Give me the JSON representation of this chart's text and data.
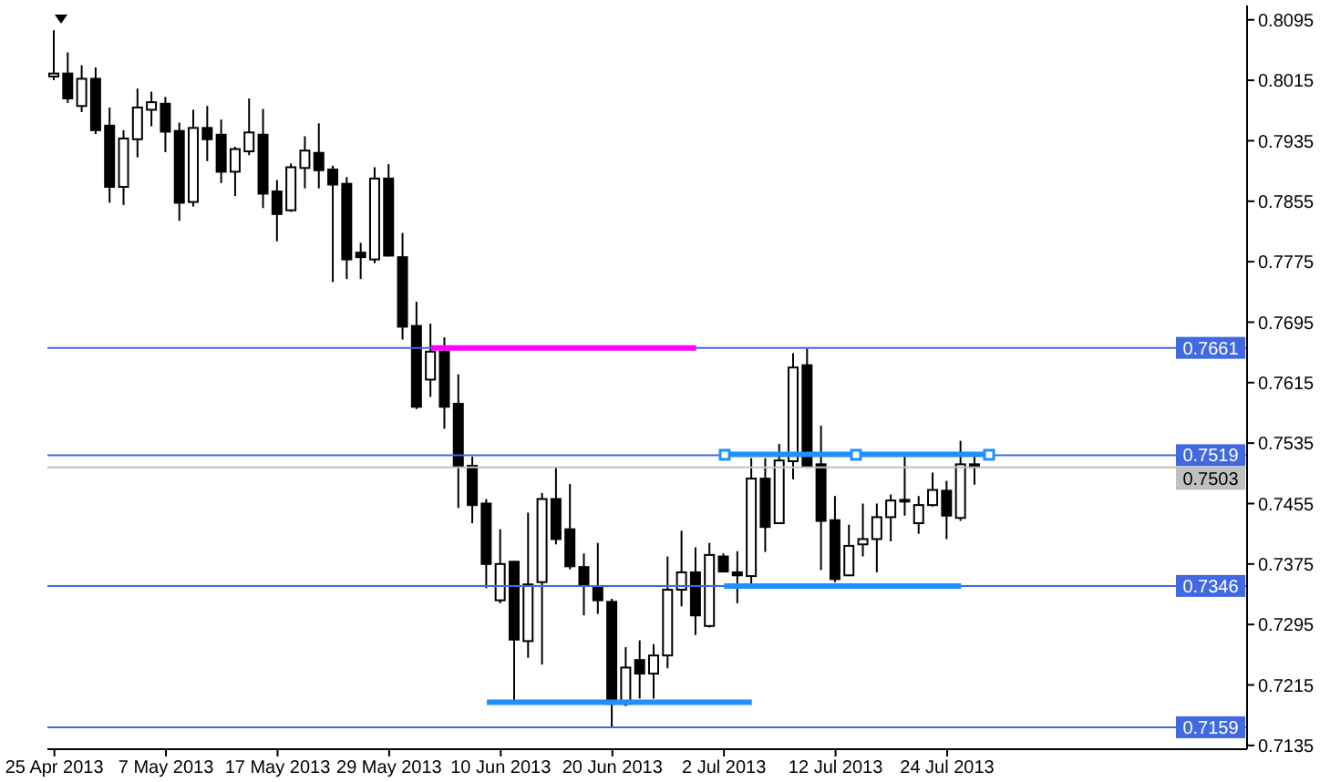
{
  "chart_data": {
    "type": "candlestick",
    "color": "#000000",
    "categories": [
      "25 Apr 2013",
      null,
      null,
      null,
      null,
      null,
      null,
      null,
      "7 May 2013",
      null,
      null,
      null,
      null,
      null,
      null,
      null,
      "17 May 2013",
      null,
      null,
      null,
      null,
      null,
      null,
      null,
      "29 May 2013",
      null,
      null,
      null,
      null,
      null,
      null,
      null,
      "10 Jun 2013",
      null,
      null,
      null,
      null,
      null,
      null,
      null,
      "20 Jun 2013",
      null,
      null,
      null,
      null,
      null,
      null,
      null,
      "2 Jul 2013",
      null,
      null,
      null,
      null,
      null,
      null,
      null,
      "12 Jul 2013",
      null,
      null,
      null,
      null,
      null,
      null,
      null,
      "24 Jul 2013",
      null,
      null,
      null,
      null,
      null,
      null,
      null,
      null,
      null,
      null,
      null,
      null,
      null,
      null,
      null,
      null,
      null,
      null,
      null,
      null,
      null
    ],
    "ohlc": [
      [
        0.802,
        0.8081,
        0.8015,
        0.8024
      ],
      [
        0.8024,
        0.8052,
        0.7985,
        0.7991
      ],
      [
        0.7981,
        0.8035,
        0.7973,
        0.8017
      ],
      [
        0.8017,
        0.8032,
        0.7944,
        0.7949
      ],
      [
        0.7955,
        0.7979,
        0.7853,
        0.7874
      ],
      [
        0.7874,
        0.7949,
        0.785,
        0.7938
      ],
      [
        0.7937,
        0.8004,
        0.7913,
        0.7979
      ],
      [
        0.7976,
        0.8,
        0.7954,
        0.7986
      ],
      [
        0.7984,
        0.7993,
        0.792,
        0.7947
      ],
      [
        0.7948,
        0.7959,
        0.7829,
        0.7853
      ],
      [
        0.7854,
        0.7976,
        0.7848,
        0.7952
      ],
      [
        0.7952,
        0.7981,
        0.7908,
        0.7937
      ],
      [
        0.7943,
        0.7963,
        0.7879,
        0.7894
      ],
      [
        0.7894,
        0.7927,
        0.7862,
        0.7924
      ],
      [
        0.7921,
        0.7991,
        0.7916,
        0.7946
      ],
      [
        0.7943,
        0.7977,
        0.7846,
        0.7865
      ],
      [
        0.7868,
        0.7883,
        0.7802,
        0.7838
      ],
      [
        0.7843,
        0.7905,
        0.7841,
        0.79
      ],
      [
        0.7899,
        0.7941,
        0.7872,
        0.7922
      ],
      [
        0.7919,
        0.7958,
        0.7872,
        0.7896
      ],
      [
        0.7897,
        0.7902,
        0.7748,
        0.7877
      ],
      [
        0.7878,
        0.7887,
        0.7752,
        0.7778
      ],
      [
        0.7787,
        0.78,
        0.7752,
        0.7781
      ],
      [
        0.7778,
        0.79,
        0.7773,
        0.7885
      ],
      [
        0.7885,
        0.7904,
        0.7782,
        0.7783
      ],
      [
        0.7781,
        0.7813,
        0.7672,
        0.7689
      ],
      [
        0.769,
        0.7722,
        0.758,
        0.7583
      ],
      [
        0.7619,
        0.7693,
        0.7596,
        0.7656
      ],
      [
        0.7656,
        0.7675,
        0.7554,
        0.7583
      ],
      [
        0.7587,
        0.7626,
        0.7449,
        0.7504
      ],
      [
        0.7505,
        0.7517,
        0.7429,
        0.7453
      ],
      [
        0.7455,
        0.7461,
        0.7343,
        0.7375
      ],
      [
        0.7327,
        0.7421,
        0.7323,
        0.7375
      ],
      [
        0.7378,
        0.7379,
        0.7195,
        0.7275
      ],
      [
        0.7273,
        0.7443,
        0.7251,
        0.7348
      ],
      [
        0.7351,
        0.7469,
        0.7242,
        0.7461
      ],
      [
        0.7461,
        0.7503,
        0.7401,
        0.7408
      ],
      [
        0.7421,
        0.7481,
        0.7368,
        0.7372
      ],
      [
        0.7371,
        0.7389,
        0.7307,
        0.7347
      ],
      [
        0.7345,
        0.7403,
        0.7309,
        0.7327
      ],
      [
        0.7325,
        0.7329,
        0.716,
        0.719
      ],
      [
        0.719,
        0.7265,
        0.7187,
        0.7238
      ],
      [
        0.7248,
        0.7274,
        0.7197,
        0.723
      ],
      [
        0.723,
        0.7269,
        0.7197,
        0.7254
      ],
      [
        0.7254,
        0.7385,
        0.7237,
        0.7341
      ],
      [
        0.7341,
        0.7419,
        0.7319,
        0.7364
      ],
      [
        0.7364,
        0.7397,
        0.7281,
        0.7307
      ],
      [
        0.7293,
        0.7403,
        0.7291,
        0.7387
      ],
      [
        0.7385,
        0.7389,
        0.7364,
        0.7365
      ],
      [
        0.7364,
        0.7392,
        0.7323,
        0.736
      ],
      [
        0.7359,
        0.7515,
        0.7349,
        0.7488
      ],
      [
        0.7488,
        0.7515,
        0.7391,
        0.7424
      ],
      [
        0.7429,
        0.7534,
        0.7428,
        0.7512
      ],
      [
        0.7511,
        0.7654,
        0.7487,
        0.7635
      ],
      [
        0.7638,
        0.766,
        0.7502,
        0.7504
      ],
      [
        0.7507,
        0.7558,
        0.7367,
        0.7432
      ],
      [
        0.7433,
        0.7465,
        0.7351,
        0.7355
      ],
      [
        0.736,
        0.7427,
        0.7359,
        0.7399
      ],
      [
        0.7401,
        0.7455,
        0.7385,
        0.7408
      ],
      [
        0.7408,
        0.7455,
        0.7364,
        0.7437
      ],
      [
        0.7437,
        0.7467,
        0.7405,
        0.7459
      ],
      [
        0.746,
        0.7517,
        0.7439,
        0.7459
      ],
      [
        0.7429,
        0.7465,
        0.7415,
        0.7453
      ],
      [
        0.7453,
        0.7496,
        0.7451,
        0.7473
      ],
      [
        0.7472,
        0.7485,
        0.7408,
        0.7439
      ],
      [
        0.7436,
        0.7538,
        0.7432,
        0.7507
      ],
      [
        0.7507,
        0.7517,
        0.748,
        0.7503
      ],
      null,
      null,
      null,
      null,
      null,
      null,
      null,
      null,
      null,
      null,
      null,
      null,
      null,
      null,
      null,
      null,
      null,
      null,
      null
    ],
    "series": [
      {
        "type": "line",
        "color": "#ff00ff",
        "values": [
          null,
          null,
          null,
          null,
          null,
          null,
          null,
          null,
          null,
          null,
          null,
          null,
          null,
          null,
          null,
          null,
          null,
          null,
          null,
          null,
          null,
          null,
          null,
          null,
          null,
          null,
          null,
          0.7661,
          0.7661,
          0.7661,
          0.7661,
          0.7661,
          0.7661,
          0.7661,
          0.7661,
          0.7661,
          0.7661,
          0.7661,
          0.7661,
          0.7661,
          0.7661,
          0.7661,
          0.7661,
          0.7661,
          0.7661,
          0.7661,
          0.7661,
          null,
          null,
          null,
          null,
          null,
          null,
          null,
          null,
          null,
          null,
          null,
          null,
          null,
          null,
          null,
          null,
          null,
          null,
          null,
          null,
          null,
          null,
          null,
          null,
          null,
          null,
          null,
          null,
          null,
          null,
          null,
          null,
          null,
          null,
          null,
          null,
          null,
          null,
          null
        ]
      },
      {
        "type": "line",
        "color": "#1e90ff",
        "values": [
          null,
          null,
          null,
          null,
          null,
          null,
          null,
          null,
          null,
          null,
          null,
          null,
          null,
          null,
          null,
          null,
          null,
          null,
          null,
          null,
          null,
          null,
          null,
          null,
          null,
          null,
          null,
          null,
          null,
          null,
          null,
          null,
          null,
          null,
          null,
          null,
          null,
          null,
          null,
          null,
          null,
          null,
          null,
          null,
          null,
          null,
          null,
          null,
          0.752,
          0.752,
          0.752,
          0.752,
          0.752,
          0.752,
          0.752,
          0.752,
          0.752,
          0.752,
          0.752,
          0.752,
          0.752,
          0.752,
          0.752,
          0.752,
          0.752,
          0.752,
          0.752,
          0.752,
          null,
          null,
          null,
          null,
          null,
          null,
          null,
          null,
          null,
          null,
          null,
          null,
          null,
          null,
          null,
          null,
          null,
          null
        ]
      },
      {
        "type": "line",
        "color": "#1e90ff",
        "values": [
          null,
          null,
          null,
          null,
          null,
          null,
          null,
          null,
          null,
          null,
          null,
          null,
          null,
          null,
          null,
          null,
          null,
          null,
          null,
          null,
          null,
          null,
          null,
          null,
          null,
          null,
          null,
          null,
          null,
          null,
          null,
          null,
          null,
          null,
          null,
          null,
          null,
          null,
          null,
          null,
          null,
          null,
          null,
          null,
          null,
          null,
          null,
          null,
          0.7346,
          0.7346,
          0.7346,
          0.7346,
          0.7346,
          0.7346,
          0.7346,
          0.7346,
          0.7346,
          0.7346,
          0.7346,
          0.7346,
          0.7346,
          0.7346,
          0.7346,
          0.7346,
          0.7346,
          0.7346,
          null,
          null,
          null,
          null,
          null,
          null,
          null,
          null,
          null,
          null,
          null,
          null,
          null,
          null,
          null,
          null,
          null,
          null,
          null,
          null
        ]
      },
      {
        "type": "line",
        "color": "#1e90ff",
        "values": [
          null,
          null,
          null,
          null,
          null,
          null,
          null,
          null,
          null,
          null,
          null,
          null,
          null,
          null,
          null,
          null,
          null,
          null,
          null,
          null,
          null,
          null,
          null,
          null,
          null,
          null,
          null,
          null,
          null,
          null,
          null,
          0.7192,
          0.7192,
          0.7192,
          0.7192,
          0.7192,
          0.7192,
          0.7192,
          0.7192,
          0.7192,
          0.7192,
          0.7192,
          0.7192,
          0.7192,
          0.7192,
          0.7192,
          0.7192,
          0.7192,
          0.7192,
          0.7192,
          0.7192,
          null,
          null,
          null,
          null,
          null,
          null,
          null,
          null,
          null,
          null,
          null,
          null,
          null,
          null,
          null,
          null,
          null,
          null,
          null,
          null,
          null,
          null,
          null,
          null,
          null,
          null,
          null,
          null,
          null,
          null,
          null,
          null,
          null,
          null,
          null
        ]
      }
    ],
    "ylim": [
      0.713,
      0.8114
    ],
    "yticks": [
      0.8095,
      0.8015,
      0.7935,
      0.7855,
      0.7775,
      0.7695,
      0.7615,
      0.7535,
      0.7455,
      0.7375,
      0.7295,
      0.7215,
      0.7135
    ],
    "ref_lines": [
      {
        "axis": "y",
        "value": 0.7661,
        "label": "0.7661",
        "color": "#4169e1"
      },
      {
        "axis": "y",
        "value": 0.7519,
        "label": "0.7519",
        "color": "#4169e1"
      },
      {
        "axis": "y",
        "value": 0.7346,
        "label": "0.7346",
        "color": "#4169e1"
      },
      {
        "axis": "y",
        "value": 0.7159,
        "label": "0.7159",
        "color": "#4169e1"
      },
      {
        "axis": "y",
        "value": 0.7503,
        "label": "0.7503",
        "color": "#c0c0c0"
      }
    ]
  }
}
